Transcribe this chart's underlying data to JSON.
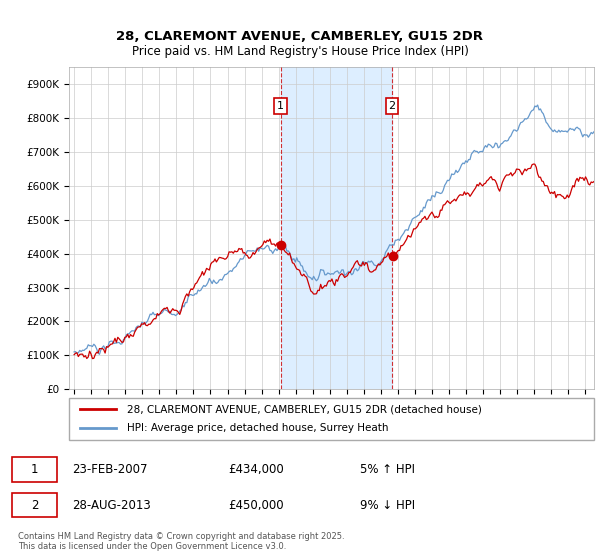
{
  "title": "28, CLAREMONT AVENUE, CAMBERLEY, GU15 2DR",
  "subtitle": "Price paid vs. HM Land Registry's House Price Index (HPI)",
  "ylim": [
    0,
    950000
  ],
  "yticks": [
    0,
    100000,
    200000,
    300000,
    400000,
    500000,
    600000,
    700000,
    800000,
    900000
  ],
  "xlim_start": 1994.7,
  "xlim_end": 2025.5,
  "transaction1_date": 2007.12,
  "transaction2_date": 2013.65,
  "legend_house": "28, CLAREMONT AVENUE, CAMBERLEY, GU15 2DR (detached house)",
  "legend_hpi": "HPI: Average price, detached house, Surrey Heath",
  "footnote": "Contains HM Land Registry data © Crown copyright and database right 2025.\nThis data is licensed under the Open Government Licence v3.0.",
  "house_color": "#cc0000",
  "hpi_color": "#6699cc",
  "shading_color": "#ddeeff",
  "grid_color": "#cccccc",
  "background_color": "#ffffff",
  "trans1_price": 434000,
  "trans2_price": 450000,
  "trans1_date_str": "23-FEB-2007",
  "trans2_date_str": "28-AUG-2013",
  "trans1_pct": "5% ↑ HPI",
  "trans2_pct": "9% ↓ HPI"
}
